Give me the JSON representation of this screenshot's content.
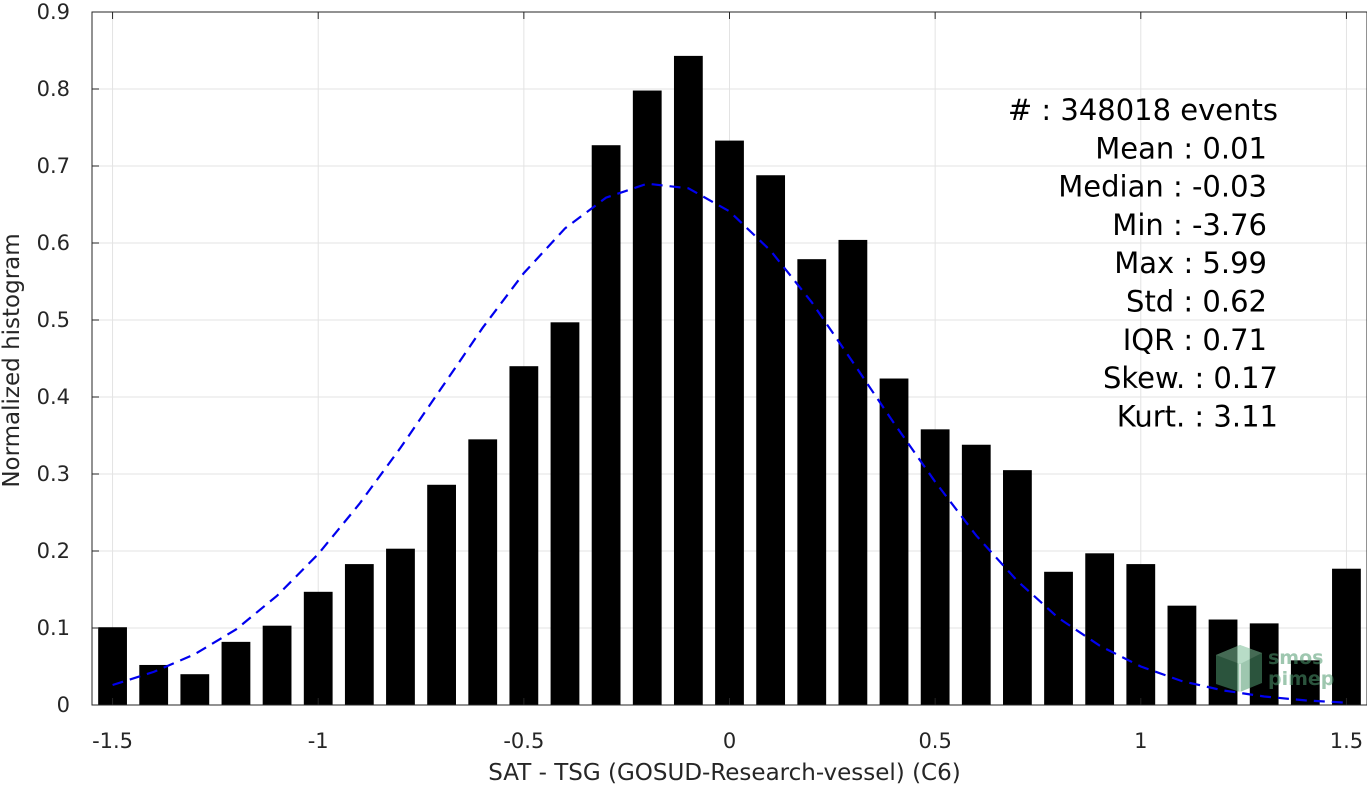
{
  "chart_data": {
    "type": "bar",
    "title": "",
    "xlabel": "SAT - TSG (GOSUD-Research-vessel) (C6)",
    "ylabel": "Normalized histogram",
    "xlim": [
      -1.55,
      1.55
    ],
    "ylim": [
      0,
      0.9
    ],
    "grid": true,
    "bar_width": 0.07,
    "x_ticks": [
      -1.5,
      -1,
      -0.5,
      0,
      0.5,
      1,
      1.5
    ],
    "x_tick_labels": [
      "-1.5",
      "-1",
      "-0.5",
      "0",
      "0.5",
      "1",
      "1.5"
    ],
    "y_ticks": [
      0,
      0.1,
      0.2,
      0.3,
      0.4,
      0.5,
      0.6,
      0.7,
      0.8,
      0.9
    ],
    "y_tick_labels": [
      "0",
      "0.1",
      "0.2",
      "0.3",
      "0.4",
      "0.5",
      "0.6",
      "0.7",
      "0.8",
      "0.9"
    ],
    "series": [
      {
        "type": "bar",
        "color": "#000000",
        "x": [
          -1.5,
          -1.4,
          -1.3,
          -1.2,
          -1.1,
          -1.0,
          -0.9,
          -0.8,
          -0.7,
          -0.6,
          -0.5,
          -0.4,
          -0.3,
          -0.2,
          -0.1,
          0.0,
          0.1,
          0.2,
          0.3,
          0.4,
          0.5,
          0.6,
          0.7,
          0.8,
          0.9,
          1.0,
          1.1,
          1.2,
          1.3,
          1.4,
          1.5
        ],
        "values": [
          0.101,
          0.052,
          0.04,
          0.082,
          0.103,
          0.147,
          0.183,
          0.203,
          0.286,
          0.345,
          0.44,
          0.497,
          0.727,
          0.798,
          0.843,
          0.733,
          0.688,
          0.579,
          0.604,
          0.424,
          0.358,
          0.338,
          0.305,
          0.173,
          0.197,
          0.183,
          0.129,
          0.111,
          0.106,
          0.058,
          0.177
        ]
      },
      {
        "type": "line",
        "style": "dashed",
        "color": "#0000ee",
        "x": [
          -1.5,
          -1.4,
          -1.3,
          -1.2,
          -1.1,
          -1.0,
          -0.9,
          -0.8,
          -0.7,
          -0.6,
          -0.5,
          -0.4,
          -0.3,
          -0.2,
          -0.1,
          0.0,
          0.1,
          0.2,
          0.3,
          0.4,
          0.5,
          0.6,
          0.7,
          0.8,
          0.9,
          1.0,
          1.1,
          1.2,
          1.3,
          1.4,
          1.5
        ],
        "values": [
          0.026,
          0.043,
          0.066,
          0.098,
          0.142,
          0.196,
          0.261,
          0.334,
          0.412,
          0.49,
          0.561,
          0.619,
          0.659,
          0.677,
          0.671,
          0.641,
          0.59,
          0.523,
          0.445,
          0.366,
          0.29,
          0.22,
          0.161,
          0.113,
          0.077,
          0.05,
          0.031,
          0.019,
          0.011,
          0.006,
          0.003
        ]
      }
    ],
    "stats": [
      {
        "label": "#  : 348018 events"
      },
      {
        "label": "Mean : 0.01"
      },
      {
        "label": "Median : -0.03"
      },
      {
        "label": "Min : -3.76"
      },
      {
        "label": "Max : 5.99"
      },
      {
        "label": "Std : 0.62"
      },
      {
        "label": "IQR : 0.71"
      },
      {
        "label": "Skew. : 0.17"
      },
      {
        "label": "Kurt. : 3.11"
      }
    ],
    "watermark": {
      "line1": "smos",
      "line2": "pimep",
      "color": "#4f9a6f"
    }
  }
}
